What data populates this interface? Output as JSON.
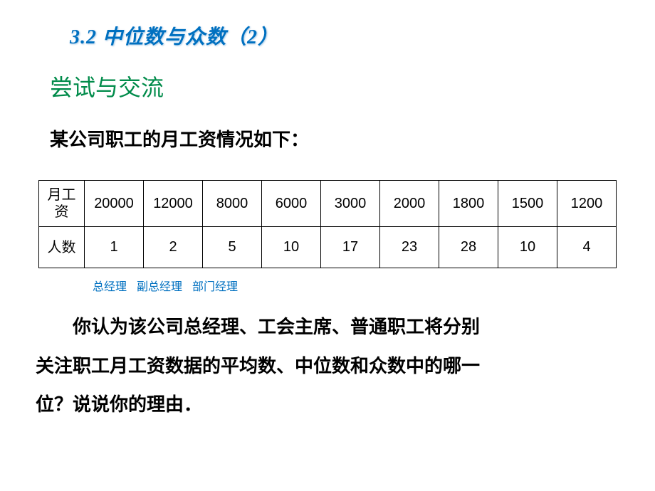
{
  "title": "3.2  中位数与众数（2）",
  "subtitle": "尝试与交流",
  "intro": "某公司职工的月工资情况如下：",
  "table": {
    "row1_header": "月工资",
    "row1": [
      "20000",
      "12000",
      "8000",
      "6000",
      "3000",
      "2000",
      "1800",
      "1500",
      "1200"
    ],
    "row2_header": "人数",
    "row2": [
      "1",
      "2",
      "5",
      "10",
      "17",
      "23",
      "28",
      "10",
      "4"
    ]
  },
  "roles": {
    "r1": "总经理",
    "r2": "副总经理",
    "r3": "部门经理"
  },
  "question_line1": "你认为该公司总经理、工会主席、普通职工将分别",
  "question_line2": "关注职工月工资数据的平均数、中位数和众数中的哪一",
  "question_line3": "位？说说你的理由．",
  "colors": {
    "title": "#0070c0",
    "subtitle": "#008b4a",
    "text": "#000000",
    "roles": "#0070c0",
    "border": "#000000",
    "background": "#ffffff"
  },
  "fontsize": {
    "title": 28,
    "subtitle": 32,
    "intro": 26,
    "table": 20,
    "roles": 16,
    "question": 26
  }
}
